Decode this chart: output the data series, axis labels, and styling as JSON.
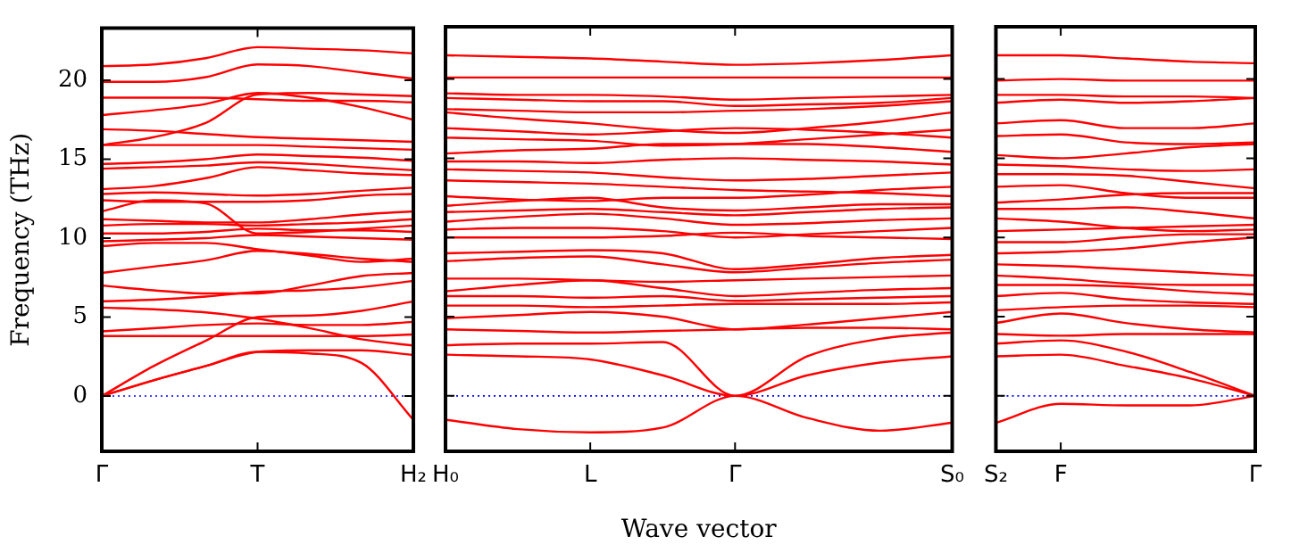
{
  "chart_data": [
    {
      "type": "line",
      "ylabel": "Frequency (THz)",
      "categories": [
        "Γ",
        null,
        null,
        "T",
        null,
        null,
        "H₂"
      ],
      "ylim": [
        -3.5,
        23.3
      ],
      "yticks": [
        0,
        5,
        10,
        15,
        20
      ],
      "marker": "none",
      "line_style": "solid",
      "ref_lines": [
        {
          "axis": "y",
          "value": 0,
          "color": "#0000ff",
          "line_style": "dotted"
        }
      ],
      "series": [
        {
          "color": "#ff0000",
          "values": [
            0,
            1.0,
            1.9,
            2.8,
            2.7,
            2.1,
            -1.5
          ]
        },
        {
          "color": "#ff0000",
          "values": [
            0,
            1.0,
            1.9,
            2.8,
            2.9,
            2.9,
            2.6
          ]
        },
        {
          "color": "#ff0000",
          "values": [
            0,
            1.9,
            3.5,
            5.0,
            5.1,
            5.4,
            6.0
          ]
        },
        {
          "color": "#ff0000",
          "values": [
            3.8,
            3.8,
            3.8,
            3.8,
            3.8,
            3.8,
            3.9
          ]
        },
        {
          "color": "#ff0000",
          "values": [
            4.1,
            4.3,
            4.5,
            4.6,
            4.5,
            4.5,
            4.7
          ]
        },
        {
          "color": "#ff0000",
          "values": [
            5.6,
            5.5,
            5.3,
            4.9,
            4.3,
            3.6,
            3.2
          ]
        },
        {
          "color": "#ff0000",
          "values": [
            6.0,
            6.1,
            6.3,
            6.6,
            6.7,
            6.9,
            7.3
          ]
        },
        {
          "color": "#ff0000",
          "values": [
            7.0,
            6.7,
            6.5,
            6.5,
            7.0,
            7.6,
            7.8
          ]
        },
        {
          "color": "#ff0000",
          "values": [
            7.8,
            8.2,
            8.6,
            9.2,
            9.0,
            8.7,
            8.5
          ]
        },
        {
          "color": "#ff0000",
          "values": [
            9.5,
            9.7,
            9.7,
            9.3,
            8.9,
            8.5,
            8.7
          ]
        },
        {
          "color": "#ff0000",
          "values": [
            9.8,
            9.9,
            10.0,
            10.2,
            10.1,
            10.0,
            9.9
          ]
        },
        {
          "color": "#ff0000",
          "values": [
            10.3,
            10.3,
            10.4,
            10.6,
            10.5,
            10.5,
            10.4
          ]
        },
        {
          "color": "#ff0000",
          "values": [
            10.8,
            10.9,
            10.9,
            10.8,
            10.9,
            11.0,
            11.2
          ]
        },
        {
          "color": "#ff0000",
          "values": [
            11.2,
            11.1,
            11.0,
            11.0,
            11.2,
            11.5,
            11.7
          ]
        },
        {
          "color": "#ff0000",
          "values": [
            11.7,
            12.4,
            12.2,
            10.3,
            10.4,
            10.6,
            10.8
          ]
        },
        {
          "color": "#ff0000",
          "values": [
            12.4,
            12.3,
            12.3,
            12.3,
            12.4,
            12.7,
            12.8
          ]
        },
        {
          "color": "#ff0000",
          "values": [
            12.8,
            12.9,
            12.8,
            12.7,
            12.8,
            13.0,
            13.2
          ]
        },
        {
          "color": "#ff0000",
          "values": [
            13.1,
            13.3,
            13.8,
            14.5,
            14.3,
            14.1,
            14.0
          ]
        },
        {
          "color": "#ff0000",
          "values": [
            14.4,
            14.5,
            14.6,
            14.8,
            14.7,
            14.5,
            14.3
          ]
        },
        {
          "color": "#ff0000",
          "values": [
            14.7,
            14.8,
            15.0,
            15.3,
            15.2,
            15.1,
            14.9
          ]
        },
        {
          "color": "#ff0000",
          "values": [
            15.9,
            15.9,
            15.9,
            15.9,
            15.8,
            15.7,
            15.6
          ]
        },
        {
          "color": "#ff0000",
          "values": [
            16.9,
            16.8,
            16.6,
            16.4,
            16.3,
            16.2,
            16.1
          ]
        },
        {
          "color": "#ff0000",
          "values": [
            15.9,
            16.4,
            17.3,
            19.1,
            19.2,
            19.1,
            19.0
          ]
        },
        {
          "color": "#ff0000",
          "values": [
            17.8,
            18.1,
            18.5,
            19.2,
            18.9,
            18.3,
            17.5
          ]
        },
        {
          "color": "#ff0000",
          "values": [
            18.9,
            18.9,
            18.9,
            18.8,
            18.7,
            18.7,
            18.6
          ]
        },
        {
          "color": "#ff0000",
          "values": [
            19.9,
            19.9,
            20.2,
            21.0,
            20.9,
            20.5,
            20.1
          ]
        },
        {
          "color": "#ff0000",
          "values": [
            20.9,
            21.0,
            21.4,
            22.1,
            22.0,
            21.9,
            21.7
          ]
        }
      ]
    },
    {
      "type": "line",
      "xlabel": "Wave vector",
      "categories": [
        "H₀",
        null,
        "L",
        null,
        "Γ",
        null,
        null,
        "S₀"
      ],
      "ylim": [
        -3.5,
        23.3
      ],
      "yticks": [
        {
          "value": 0,
          "label": null
        },
        {
          "value": 5,
          "label": null
        },
        {
          "value": 10,
          "label": null
        },
        {
          "value": 15,
          "label": null
        },
        {
          "value": 20,
          "label": null
        }
      ],
      "tick_labels": "x",
      "marker": "none",
      "line_style": "solid",
      "ref_lines": [
        {
          "axis": "y",
          "value": 0,
          "color": "#0000ff",
          "line_style": "dotted"
        }
      ],
      "series": [
        {
          "color": "#ff0000",
          "values": [
            -1.5,
            -2.1,
            -2.3,
            -2.0,
            0,
            -1.4,
            -2.2,
            -1.7
          ]
        },
        {
          "color": "#ff0000",
          "values": [
            2.6,
            2.5,
            2.3,
            1.3,
            0,
            1.3,
            2.1,
            2.5
          ]
        },
        {
          "color": "#ff0000",
          "values": [
            3.2,
            3.3,
            3.3,
            3.4,
            0,
            2.5,
            3.6,
            4.0
          ]
        },
        {
          "color": "#ff0000",
          "values": [
            4.2,
            4.1,
            4.0,
            4.1,
            4.2,
            4.3,
            4.3,
            4.2
          ]
        },
        {
          "color": "#ff0000",
          "values": [
            4.9,
            5.1,
            5.3,
            5.0,
            4.2,
            4.5,
            4.9,
            5.3
          ]
        },
        {
          "color": "#ff0000",
          "values": [
            5.7,
            5.7,
            5.6,
            5.7,
            5.8,
            5.8,
            5.8,
            5.9
          ]
        },
        {
          "color": "#ff0000",
          "values": [
            6.3,
            6.3,
            6.2,
            6.3,
            6.0,
            6.1,
            6.2,
            6.3
          ]
        },
        {
          "color": "#ff0000",
          "values": [
            6.6,
            7.0,
            7.3,
            6.8,
            6.3,
            6.5,
            6.7,
            6.8
          ]
        },
        {
          "color": "#ff0000",
          "values": [
            7.4,
            7.4,
            7.3,
            7.2,
            7.3,
            7.4,
            7.5,
            7.6
          ]
        },
        {
          "color": "#ff0000",
          "values": [
            8.5,
            8.7,
            8.8,
            8.3,
            7.8,
            8.1,
            8.4,
            8.6
          ]
        },
        {
          "color": "#ff0000",
          "values": [
            9.0,
            9.1,
            9.2,
            9.0,
            8.0,
            8.3,
            8.7,
            8.9
          ]
        },
        {
          "color": "#ff0000",
          "values": [
            10.0,
            10.0,
            10.0,
            10.1,
            10.3,
            10.1,
            10.0,
            9.9
          ]
        },
        {
          "color": "#ff0000",
          "values": [
            10.5,
            10.6,
            10.6,
            10.4,
            10.0,
            10.2,
            10.4,
            10.6
          ]
        },
        {
          "color": "#ff0000",
          "values": [
            11.0,
            11.3,
            11.5,
            11.2,
            10.8,
            10.9,
            11.1,
            11.2
          ]
        },
        {
          "color": "#ff0000",
          "values": [
            11.6,
            11.7,
            11.8,
            11.6,
            11.4,
            11.6,
            11.8,
            11.9
          ]
        },
        {
          "color": "#ff0000",
          "values": [
            12.0,
            12.3,
            12.5,
            11.9,
            11.7,
            11.9,
            12.1,
            12.1
          ]
        },
        {
          "color": "#ff0000",
          "values": [
            12.6,
            12.4,
            12.3,
            12.5,
            12.5,
            12.7,
            13.0,
            13.2
          ]
        },
        {
          "color": "#ff0000",
          "values": [
            13.6,
            13.5,
            13.4,
            13.2,
            13.0,
            12.9,
            12.8,
            12.6
          ]
        },
        {
          "color": "#ff0000",
          "values": [
            14.3,
            14.2,
            14.1,
            13.8,
            13.6,
            13.7,
            13.9,
            14.1
          ]
        },
        {
          "color": "#ff0000",
          "values": [
            14.8,
            14.8,
            14.7,
            14.9,
            15.0,
            14.9,
            14.8,
            14.6
          ]
        },
        {
          "color": "#ff0000",
          "values": [
            15.3,
            15.5,
            15.6,
            15.9,
            15.9,
            15.9,
            15.7,
            15.4
          ]
        },
        {
          "color": "#ff0000",
          "values": [
            16.3,
            16.2,
            16.1,
            15.8,
            15.9,
            16.2,
            16.5,
            16.8
          ]
        },
        {
          "color": "#ff0000",
          "values": [
            16.9,
            16.7,
            16.5,
            16.7,
            16.9,
            16.8,
            16.6,
            16.3
          ]
        },
        {
          "color": "#ff0000",
          "values": [
            17.9,
            17.5,
            17.2,
            16.8,
            16.6,
            16.9,
            17.3,
            17.9
          ]
        },
        {
          "color": "#ff0000",
          "values": [
            18.1,
            18.0,
            17.9,
            17.9,
            18.0,
            18.1,
            18.3,
            18.6
          ]
        },
        {
          "color": "#ff0000",
          "values": [
            18.8,
            18.7,
            18.6,
            18.6,
            18.3,
            18.4,
            18.5,
            18.8
          ]
        },
        {
          "color": "#ff0000",
          "values": [
            19.1,
            19.0,
            19.0,
            18.9,
            18.7,
            18.8,
            18.9,
            19.0
          ]
        },
        {
          "color": "#ff0000",
          "values": [
            20.1,
            20.1,
            20.1,
            20.1,
            20.1,
            20.1,
            20.1,
            20.1
          ]
        },
        {
          "color": "#ff0000",
          "values": [
            21.5,
            21.4,
            21.3,
            21.1,
            20.9,
            21.0,
            21.2,
            21.5
          ]
        }
      ]
    },
    {
      "type": "line",
      "categories": [
        "S₂",
        "F",
        null,
        null,
        "Γ"
      ],
      "ylim": [
        -3.5,
        23.3
      ],
      "yticks": [
        {
          "value": 0,
          "label": null
        },
        {
          "value": 5,
          "label": null
        },
        {
          "value": 10,
          "label": null
        },
        {
          "value": 15,
          "label": null
        },
        {
          "value": 20,
          "label": null
        }
      ],
      "tick_labels": "x",
      "marker": "none",
      "line_style": "solid",
      "ref_lines": [
        {
          "axis": "y",
          "value": 0,
          "color": "#0000ff",
          "line_style": "dotted"
        }
      ],
      "series": [
        {
          "color": "#ff0000",
          "values": [
            -1.7,
            -0.5,
            -0.6,
            -0.6,
            0
          ]
        },
        {
          "color": "#ff0000",
          "values": [
            2.5,
            2.6,
            1.9,
            1.1,
            0
          ]
        },
        {
          "color": "#ff0000",
          "values": [
            3.3,
            3.5,
            2.8,
            1.5,
            0
          ]
        },
        {
          "color": "#ff0000",
          "values": [
            3.9,
            3.8,
            3.9,
            3.9,
            3.9
          ]
        },
        {
          "color": "#ff0000",
          "values": [
            4.6,
            5.2,
            4.6,
            4.2,
            4.0
          ]
        },
        {
          "color": "#ff0000",
          "values": [
            5.4,
            5.6,
            5.7,
            5.7,
            5.6
          ]
        },
        {
          "color": "#ff0000",
          "values": [
            6.3,
            6.5,
            6.1,
            5.9,
            5.8
          ]
        },
        {
          "color": "#ff0000",
          "values": [
            7.0,
            7.0,
            6.9,
            6.6,
            6.4
          ]
        },
        {
          "color": "#ff0000",
          "values": [
            7.6,
            7.4,
            7.1,
            7.0,
            7.0
          ]
        },
        {
          "color": "#ff0000",
          "values": [
            8.3,
            8.2,
            8.0,
            7.8,
            7.6
          ]
        },
        {
          "color": "#ff0000",
          "values": [
            9.0,
            9.1,
            9.3,
            9.7,
            10.0
          ]
        },
        {
          "color": "#ff0000",
          "values": [
            9.7,
            9.7,
            10.0,
            10.2,
            10.2
          ]
        },
        {
          "color": "#ff0000",
          "values": [
            10.4,
            10.5,
            10.6,
            10.7,
            10.8
          ]
        },
        {
          "color": "#ff0000",
          "values": [
            11.2,
            11.0,
            10.6,
            10.4,
            10.5
          ]
        },
        {
          "color": "#ff0000",
          "values": [
            11.8,
            11.8,
            11.9,
            11.6,
            11.2
          ]
        },
        {
          "color": "#ff0000",
          "values": [
            12.2,
            12.4,
            12.7,
            12.8,
            12.8
          ]
        },
        {
          "color": "#ff0000",
          "values": [
            13.2,
            13.3,
            12.8,
            12.5,
            12.5
          ]
        },
        {
          "color": "#ff0000",
          "values": [
            14.0,
            14.0,
            13.9,
            13.5,
            13.1
          ]
        },
        {
          "color": "#ff0000",
          "values": [
            14.6,
            14.5,
            14.3,
            14.2,
            14.3
          ]
        },
        {
          "color": "#ff0000",
          "values": [
            15.2,
            15.0,
            15.3,
            15.7,
            15.9
          ]
        },
        {
          "color": "#ff0000",
          "values": [
            16.4,
            16.5,
            16.0,
            15.9,
            16.0
          ]
        },
        {
          "color": "#ff0000",
          "values": [
            17.2,
            17.4,
            16.9,
            16.9,
            17.2
          ]
        },
        {
          "color": "#ff0000",
          "values": [
            18.5,
            18.7,
            18.5,
            18.6,
            18.8
          ]
        },
        {
          "color": "#ff0000",
          "values": [
            19.0,
            19.0,
            18.9,
            18.9,
            18.8
          ]
        },
        {
          "color": "#ff0000",
          "values": [
            19.9,
            20.0,
            19.9,
            19.9,
            19.9
          ]
        },
        {
          "color": "#ff0000",
          "values": [
            21.5,
            21.5,
            21.3,
            21.1,
            21.0
          ]
        }
      ]
    }
  ]
}
